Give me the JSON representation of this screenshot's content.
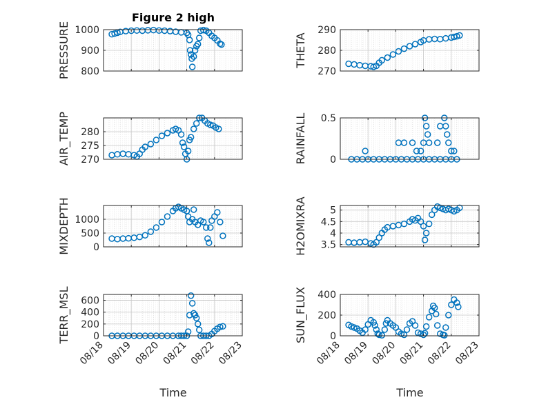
{
  "figure": {
    "title": "Figure 2 high",
    "xlabel": "Time"
  },
  "colors": {
    "marker": "#0072BD",
    "axis": "#262626",
    "grid": "#d9d9d9"
  },
  "chart_data": [
    {
      "type": "scatter",
      "ylabel": "PRESSURE",
      "ylim": [
        800,
        1000
      ],
      "yticks": [
        800,
        900,
        1000
      ],
      "xlim": [
        0,
        5
      ],
      "points": [
        [
          0.3,
          978
        ],
        [
          0.4,
          981
        ],
        [
          0.5,
          985
        ],
        [
          0.6,
          989
        ],
        [
          0.8,
          993
        ],
        [
          1.0,
          995
        ],
        [
          1.2,
          996
        ],
        [
          1.4,
          995
        ],
        [
          1.6,
          997
        ],
        [
          1.8,
          998
        ],
        [
          2.0,
          996
        ],
        [
          2.2,
          995
        ],
        [
          2.4,
          993
        ],
        [
          2.6,
          990
        ],
        [
          2.8,
          987
        ],
        [
          3.0,
          984
        ],
        [
          3.05,
          975
        ],
        [
          3.1,
          950
        ],
        [
          3.12,
          900
        ],
        [
          3.15,
          880
        ],
        [
          3.18,
          860
        ],
        [
          3.2,
          820
        ],
        [
          3.25,
          870
        ],
        [
          3.3,
          900
        ],
        [
          3.35,
          920
        ],
        [
          3.4,
          930
        ],
        [
          3.45,
          960
        ],
        [
          3.5,
          995
        ],
        [
          3.6,
          998
        ],
        [
          3.7,
          995
        ],
        [
          3.8,
          985
        ],
        [
          3.9,
          970
        ],
        [
          4.0,
          960
        ],
        [
          4.1,
          948
        ],
        [
          4.2,
          932
        ],
        [
          4.25,
          928
        ]
      ]
    },
    {
      "type": "scatter",
      "ylabel": "THETA",
      "ylim": [
        270,
        290
      ],
      "yticks": [
        270,
        280,
        290
      ],
      "xlim": [
        0,
        5
      ],
      "points": [
        [
          0.3,
          273.5
        ],
        [
          0.5,
          273.2
        ],
        [
          0.7,
          272.8
        ],
        [
          0.9,
          272.5
        ],
        [
          1.1,
          272.3
        ],
        [
          1.2,
          272.0
        ],
        [
          1.3,
          272.5
        ],
        [
          1.4,
          274
        ],
        [
          1.5,
          275.2
        ],
        [
          1.7,
          276.5
        ],
        [
          1.9,
          278
        ],
        [
          2.1,
          279.5
        ],
        [
          2.3,
          280.8
        ],
        [
          2.5,
          282
        ],
        [
          2.7,
          283
        ],
        [
          2.9,
          284
        ],
        [
          3.0,
          284.8
        ],
        [
          3.2,
          285.3
        ],
        [
          3.4,
          285.5
        ],
        [
          3.6,
          285.4
        ],
        [
          3.8,
          285.8
        ],
        [
          4.0,
          286.2
        ],
        [
          4.1,
          286.5
        ],
        [
          4.2,
          286.8
        ],
        [
          4.3,
          287.2
        ]
      ]
    },
    {
      "type": "scatter",
      "ylabel": "AIR_TEMP",
      "ylim": [
        270,
        285
      ],
      "yticks": [
        270,
        275,
        280
      ],
      "xlim": [
        0,
        5
      ],
      "points": [
        [
          0.3,
          271.5
        ],
        [
          0.5,
          271.8
        ],
        [
          0.7,
          272
        ],
        [
          0.9,
          271.8
        ],
        [
          1.1,
          271.5
        ],
        [
          1.2,
          271
        ],
        [
          1.3,
          272
        ],
        [
          1.4,
          273.5
        ],
        [
          1.5,
          274.5
        ],
        [
          1.7,
          275.5
        ],
        [
          1.9,
          277
        ],
        [
          2.1,
          278.5
        ],
        [
          2.3,
          279.5
        ],
        [
          2.5,
          280.5
        ],
        [
          2.6,
          281
        ],
        [
          2.7,
          280.5
        ],
        [
          2.8,
          279
        ],
        [
          2.85,
          276
        ],
        [
          2.9,
          274.5
        ],
        [
          2.95,
          272
        ],
        [
          3.0,
          270
        ],
        [
          3.05,
          273
        ],
        [
          3.1,
          277
        ],
        [
          3.15,
          278
        ],
        [
          3.25,
          281
        ],
        [
          3.35,
          283
        ],
        [
          3.45,
          285
        ],
        [
          3.55,
          285
        ],
        [
          3.65,
          284
        ],
        [
          3.75,
          283
        ],
        [
          3.85,
          282.5
        ],
        [
          3.95,
          282.2
        ],
        [
          4.05,
          281.5
        ],
        [
          4.15,
          281
        ]
      ]
    },
    {
      "type": "scatter",
      "ylabel": "RAINFALL",
      "ylim": [
        0,
        0.5
      ],
      "yticks": [
        0,
        0.5
      ],
      "xlim": [
        0,
        5
      ],
      "points": [
        [
          0.4,
          0
        ],
        [
          0.6,
          0
        ],
        [
          0.8,
          0
        ],
        [
          1.0,
          0
        ],
        [
          1.2,
          0
        ],
        [
          1.4,
          0
        ],
        [
          1.6,
          0
        ],
        [
          1.8,
          0
        ],
        [
          2.0,
          0
        ],
        [
          2.2,
          0
        ],
        [
          2.4,
          0
        ],
        [
          2.6,
          0
        ],
        [
          2.8,
          0
        ],
        [
          3.0,
          0
        ],
        [
          3.2,
          0
        ],
        [
          3.4,
          0
        ],
        [
          3.6,
          0
        ],
        [
          3.8,
          0
        ],
        [
          4.0,
          0
        ],
        [
          4.2,
          0
        ],
        [
          0.9,
          0.1
        ],
        [
          2.1,
          0.2
        ],
        [
          2.3,
          0.2
        ],
        [
          2.6,
          0.2
        ],
        [
          2.75,
          0.1
        ],
        [
          2.9,
          0.1
        ],
        [
          3.0,
          0.2
        ],
        [
          3.05,
          0.5
        ],
        [
          3.1,
          0.4
        ],
        [
          3.15,
          0.3
        ],
        [
          3.2,
          0.2
        ],
        [
          3.5,
          0.2
        ],
        [
          3.6,
          0.4
        ],
        [
          3.75,
          0.5
        ],
        [
          3.8,
          0.4
        ],
        [
          3.85,
          0.3
        ],
        [
          3.9,
          0.2
        ],
        [
          4.0,
          0.1
        ],
        [
          4.1,
          0.1
        ]
      ]
    },
    {
      "type": "scatter",
      "ylabel": "MIXDEPTH",
      "ylim": [
        0,
        1500
      ],
      "yticks": [
        0,
        500,
        1000
      ],
      "xlim": [
        0,
        5
      ],
      "points": [
        [
          0.3,
          300
        ],
        [
          0.5,
          280
        ],
        [
          0.7,
          300
        ],
        [
          0.9,
          310
        ],
        [
          1.1,
          330
        ],
        [
          1.3,
          360
        ],
        [
          1.5,
          420
        ],
        [
          1.7,
          550
        ],
        [
          1.9,
          700
        ],
        [
          2.1,
          900
        ],
        [
          2.3,
          1100
        ],
        [
          2.5,
          1300
        ],
        [
          2.6,
          1400
        ],
        [
          2.7,
          1450
        ],
        [
          2.8,
          1400
        ],
        [
          2.9,
          1350
        ],
        [
          3.0,
          1300
        ],
        [
          3.05,
          1100
        ],
        [
          3.1,
          900
        ],
        [
          3.2,
          1000
        ],
        [
          3.25,
          1350
        ],
        [
          3.3,
          900
        ],
        [
          3.4,
          800
        ],
        [
          3.5,
          950
        ],
        [
          3.6,
          900
        ],
        [
          3.7,
          700
        ],
        [
          3.75,
          300
        ],
        [
          3.8,
          150
        ],
        [
          3.85,
          700
        ],
        [
          3.9,
          950
        ],
        [
          4.0,
          1100
        ],
        [
          4.1,
          1250
        ],
        [
          4.2,
          900
        ],
        [
          4.3,
          400
        ]
      ]
    },
    {
      "type": "scatter",
      "ylabel": "H2OMIXRA",
      "ylim": [
        3.4,
        5.2
      ],
      "yticks": [
        3.5,
        4,
        4.5,
        5
      ],
      "xlim": [
        0,
        5
      ],
      "points": [
        [
          0.3,
          3.6
        ],
        [
          0.5,
          3.58
        ],
        [
          0.7,
          3.6
        ],
        [
          0.9,
          3.62
        ],
        [
          1.1,
          3.55
        ],
        [
          1.2,
          3.5
        ],
        [
          1.3,
          3.6
        ],
        [
          1.4,
          3.8
        ],
        [
          1.5,
          4.0
        ],
        [
          1.6,
          4.15
        ],
        [
          1.7,
          4.25
        ],
        [
          1.9,
          4.3
        ],
        [
          2.1,
          4.35
        ],
        [
          2.3,
          4.4
        ],
        [
          2.5,
          4.5
        ],
        [
          2.6,
          4.6
        ],
        [
          2.7,
          4.55
        ],
        [
          2.8,
          4.65
        ],
        [
          2.9,
          4.5
        ],
        [
          3.0,
          4.3
        ],
        [
          3.05,
          3.7
        ],
        [
          3.1,
          4.0
        ],
        [
          3.2,
          4.4
        ],
        [
          3.3,
          4.8
        ],
        [
          3.4,
          5.0
        ],
        [
          3.5,
          5.15
        ],
        [
          3.6,
          5.1
        ],
        [
          3.7,
          5.05
        ],
        [
          3.8,
          5.0
        ],
        [
          3.9,
          5.05
        ],
        [
          4.0,
          5.0
        ],
        [
          4.1,
          4.95
        ],
        [
          4.2,
          5.0
        ],
        [
          4.3,
          5.1
        ]
      ]
    },
    {
      "type": "scatter",
      "ylabel": "TERR_MSL",
      "ylim": [
        0,
        700
      ],
      "yticks": [
        0,
        200,
        400,
        600
      ],
      "xlim": [
        0,
        5
      ],
      "points": [
        [
          0.3,
          0
        ],
        [
          0.5,
          0
        ],
        [
          0.7,
          0
        ],
        [
          0.9,
          0
        ],
        [
          1.1,
          0
        ],
        [
          1.3,
          0
        ],
        [
          1.5,
          0
        ],
        [
          1.7,
          0
        ],
        [
          1.9,
          0
        ],
        [
          2.1,
          0
        ],
        [
          2.3,
          0
        ],
        [
          2.5,
          0
        ],
        [
          2.7,
          0
        ],
        [
          2.8,
          0
        ],
        [
          2.9,
          0
        ],
        [
          3.0,
          0
        ],
        [
          3.05,
          70
        ],
        [
          3.1,
          350
        ],
        [
          3.15,
          680
        ],
        [
          3.2,
          550
        ],
        [
          3.25,
          380
        ],
        [
          3.3,
          350
        ],
        [
          3.35,
          300
        ],
        [
          3.4,
          200
        ],
        [
          3.45,
          100
        ],
        [
          3.5,
          0
        ],
        [
          3.6,
          0
        ],
        [
          3.7,
          0
        ],
        [
          3.8,
          0
        ],
        [
          3.9,
          30
        ],
        [
          4.0,
          80
        ],
        [
          4.1,
          120
        ],
        [
          4.2,
          150
        ],
        [
          4.3,
          160
        ]
      ]
    },
    {
      "type": "scatter",
      "ylabel": "SUN_FLUX",
      "ylim": [
        0,
        400
      ],
      "yticks": [
        0,
        200,
        400
      ],
      "xlim": [
        0,
        5
      ],
      "points": [
        [
          0.3,
          105
        ],
        [
          0.4,
          90
        ],
        [
          0.5,
          80
        ],
        [
          0.6,
          70
        ],
        [
          0.7,
          50
        ],
        [
          0.8,
          30
        ],
        [
          0.9,
          60
        ],
        [
          1.0,
          110
        ],
        [
          1.1,
          150
        ],
        [
          1.2,
          130
        ],
        [
          1.25,
          100
        ],
        [
          1.3,
          60
        ],
        [
          1.35,
          20
        ],
        [
          1.4,
          10
        ],
        [
          1.5,
          5
        ],
        [
          1.6,
          60
        ],
        [
          1.65,
          120
        ],
        [
          1.7,
          150
        ],
        [
          1.8,
          120
        ],
        [
          1.9,
          100
        ],
        [
          2.0,
          80
        ],
        [
          2.1,
          40
        ],
        [
          2.2,
          20
        ],
        [
          2.3,
          10
        ],
        [
          2.4,
          60
        ],
        [
          2.5,
          120
        ],
        [
          2.6,
          140
        ],
        [
          2.7,
          100
        ],
        [
          2.8,
          30
        ],
        [
          2.9,
          20
        ],
        [
          3.0,
          10
        ],
        [
          3.05,
          25
        ],
        [
          3.1,
          90
        ],
        [
          3.2,
          180
        ],
        [
          3.3,
          240
        ],
        [
          3.35,
          290
        ],
        [
          3.4,
          270
        ],
        [
          3.45,
          210
        ],
        [
          3.5,
          100
        ],
        [
          3.6,
          20
        ],
        [
          3.7,
          10
        ],
        [
          3.75,
          5
        ],
        [
          3.8,
          80
        ],
        [
          3.9,
          200
        ],
        [
          4.0,
          300
        ],
        [
          4.1,
          350
        ],
        [
          4.2,
          320
        ],
        [
          4.25,
          280
        ]
      ]
    }
  ],
  "xticks": [
    "08/18",
    "08/19",
    "08/20",
    "08/21",
    "08/22",
    "08/23"
  ]
}
